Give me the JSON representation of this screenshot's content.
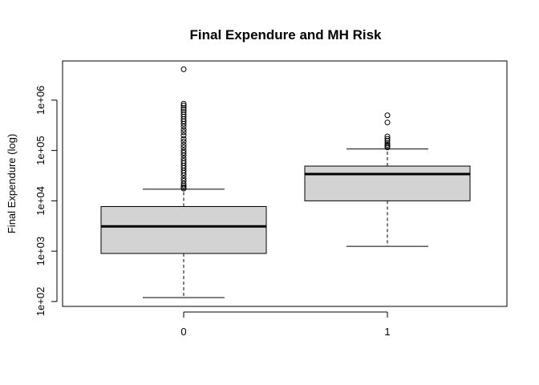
{
  "chart_data": {
    "type": "boxplot",
    "title": "Final Expendure and MH Risk",
    "xlabel": "",
    "ylabel": "Final Expendure (log)",
    "y_scale": "log",
    "ylim": [
      80,
      6000000
    ],
    "categories": [
      "0",
      "1"
    ],
    "x_tick_labels": [
      "0",
      "1"
    ],
    "y_ticks": [
      100,
      1000,
      10000,
      100000,
      1000000
    ],
    "y_tick_labels": [
      "1e+02",
      "1e+03",
      "1e+04",
      "1e+05",
      "1e+06"
    ],
    "boxes": [
      {
        "category": "0",
        "min": 120,
        "q1": 900,
        "median": 3100,
        "q3": 7700,
        "max": 17000,
        "outliers": [
          17500,
          18500,
          20000,
          22000,
          25000,
          28000,
          32000,
          36000,
          40000,
          45000,
          50000,
          56000,
          62000,
          70000,
          80000,
          90000,
          100000,
          115000,
          130000,
          150000,
          170000,
          200000,
          230000,
          260000,
          300000,
          340000,
          380000,
          420000,
          470000,
          520000,
          580000,
          640000,
          700000,
          780000,
          850000,
          4100000
        ]
      },
      {
        "category": "1",
        "min": 1250,
        "q1": 10000,
        "median": 34000,
        "q3": 49000,
        "max": 107000,
        "outliers": [
          115000,
          122000,
          130000,
          140000,
          155000,
          170000,
          190000,
          360000,
          500000
        ]
      }
    ],
    "box_fill": "#d3d3d3",
    "grid": false,
    "legend": "none"
  }
}
